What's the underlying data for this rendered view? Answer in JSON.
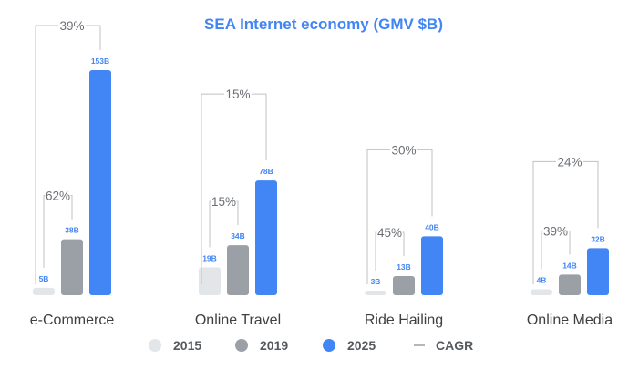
{
  "chart_data": {
    "type": "bar",
    "title": "SEA Internet economy (GMV $B)",
    "categories": [
      "e-Commerce",
      "Online Travel",
      "Ride Hailing",
      "Online Media"
    ],
    "series": [
      {
        "name": "2015",
        "values": [
          5,
          19,
          3,
          4
        ],
        "labels": [
          "5B",
          "19B",
          "3B",
          "4B"
        ],
        "color": "#e3e6e9",
        "label_color": "#4285f4"
      },
      {
        "name": "2019",
        "values": [
          38,
          34,
          13,
          14
        ],
        "labels": [
          "38B",
          "34B",
          "13B",
          "14B"
        ],
        "color": "#9aa0a6",
        "label_color": "#4285f4"
      },
      {
        "name": "2025",
        "values": [
          153,
          78,
          40,
          32
        ],
        "labels": [
          "153B",
          "78B",
          "40B",
          "32B"
        ],
        "color": "#4285f4",
        "label_color": "#4285f4"
      }
    ],
    "cagr": {
      "label": "CAGR",
      "2015_2019": [
        "62%",
        "15%",
        "45%",
        "39%"
      ],
      "2015_2025": [
        "39%",
        "15%",
        "30%",
        "24%"
      ]
    },
    "legend_position": "bottom",
    "ylim": [
      0,
      153
    ],
    "grid": false,
    "title_color": "#4285f4",
    "bracket_color": "#bdc1c6"
  }
}
